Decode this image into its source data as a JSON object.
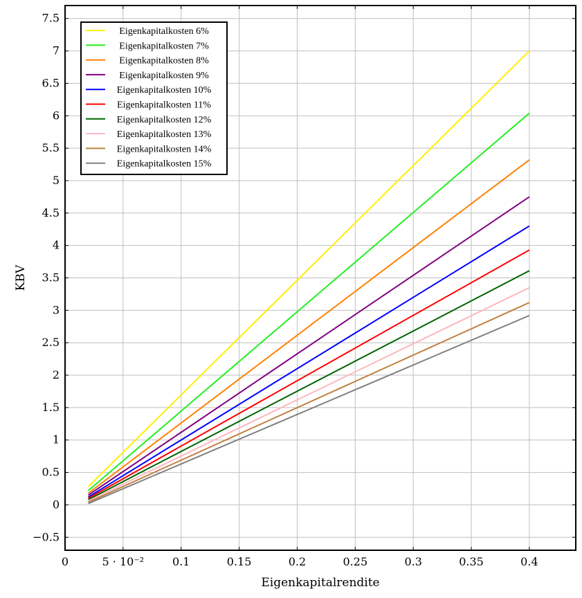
{
  "chart_data": {
    "type": "line",
    "title": "",
    "xlabel": "Eigenkapitalrendite",
    "ylabel": "KBV",
    "xlim": [
      0,
      0.44
    ],
    "ylim": [
      -0.7,
      7.7
    ],
    "grid": true,
    "legend_position": "top-left",
    "x_ticks": [
      {
        "value": 0,
        "label": "0"
      },
      {
        "value": 0.05,
        "label": "5 · 10⁻²"
      },
      {
        "value": 0.1,
        "label": "0.1"
      },
      {
        "value": 0.15,
        "label": "0.15"
      },
      {
        "value": 0.2,
        "label": "0.2"
      },
      {
        "value": 0.25,
        "label": "0.25"
      },
      {
        "value": 0.3,
        "label": "0.3"
      },
      {
        "value": 0.35,
        "label": "0.35"
      },
      {
        "value": 0.4,
        "label": "0.4"
      }
    ],
    "y_ticks": [
      {
        "value": -0.5,
        "label": "−0.5"
      },
      {
        "value": 0,
        "label": "0"
      },
      {
        "value": 0.5,
        "label": "0.5"
      },
      {
        "value": 1,
        "label": "1"
      },
      {
        "value": 1.5,
        "label": "1.5"
      },
      {
        "value": 2,
        "label": "2"
      },
      {
        "value": 2.5,
        "label": "2.5"
      },
      {
        "value": 3,
        "label": "3"
      },
      {
        "value": 3.5,
        "label": "3.5"
      },
      {
        "value": 4,
        "label": "4"
      },
      {
        "value": 4.5,
        "label": "4.5"
      },
      {
        "value": 5,
        "label": "5"
      },
      {
        "value": 5.5,
        "label": "5.5"
      },
      {
        "value": 6,
        "label": "6"
      },
      {
        "value": 6.5,
        "label": "6.5"
      },
      {
        "value": 7,
        "label": "7"
      },
      {
        "value": 7.5,
        "label": "7.5"
      }
    ],
    "x": [
      0.02,
      0.4
    ],
    "series": [
      {
        "name": "Eigenkapitalkosten 6%",
        "color": "#ffee00",
        "values": [
          0.28,
          7.0
        ]
      },
      {
        "name": "Eigenkapitalkosten 7%",
        "color": "#22ee22",
        "values": [
          0.22,
          6.04
        ]
      },
      {
        "name": "Eigenkapitalkosten 8%",
        "color": "#ff8000",
        "values": [
          0.18,
          5.32
        ]
      },
      {
        "name": "Eigenkapitalkosten 9%",
        "color": "#800080",
        "values": [
          0.15,
          4.75
        ]
      },
      {
        "name": "Eigenkapitalkosten 10%",
        "color": "#0000ff",
        "values": [
          0.12,
          4.3
        ]
      },
      {
        "name": "Eigenkapitalkosten 11%",
        "color": "#ff0000",
        "values": [
          0.1,
          3.93
        ]
      },
      {
        "name": "Eigenkapitalkosten 12%",
        "color": "#006400",
        "values": [
          0.08,
          3.61
        ]
      },
      {
        "name": "Eigenkapitalkosten 13%",
        "color": "#ffb6c1",
        "values": [
          0.06,
          3.35
        ]
      },
      {
        "name": "Eigenkapitalkosten 14%",
        "color": "#bf8040",
        "values": [
          0.04,
          3.12
        ]
      },
      {
        "name": "Eigenkapitalkosten 15%",
        "color": "#808080",
        "values": [
          0.02,
          2.92
        ]
      }
    ]
  }
}
